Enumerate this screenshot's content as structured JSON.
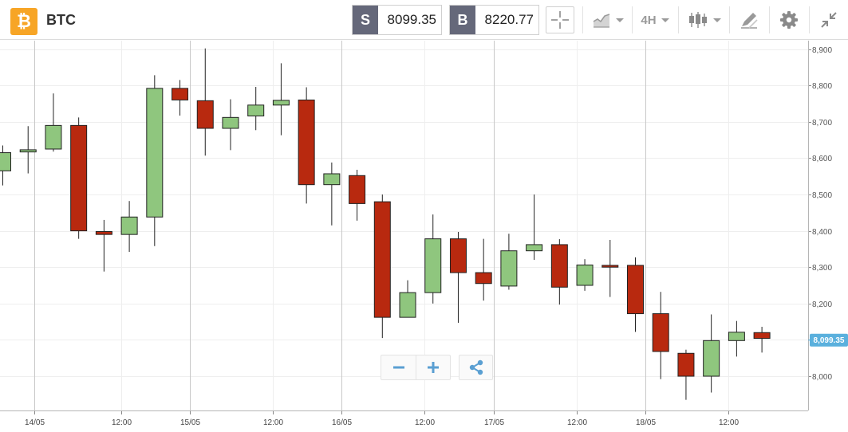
{
  "header": {
    "asset_symbol": "BTC",
    "asset_logo_glyph": "₿",
    "sell_label": "S",
    "sell_price": "8099.35",
    "buy_label": "B",
    "buy_price": "8220.77",
    "interval": "4H"
  },
  "colors": {
    "bullish": "#8fc67e",
    "bearish": "#b8290f",
    "price_flag": "#5ab0dd",
    "icon": "#9a9a9a",
    "zoom_icon": "#5a9fd2",
    "logo": "#f7a526"
  },
  "icons": {
    "asset_logo": "bitcoin-icon",
    "crosshair": "crosshair-icon",
    "chart_type": "area-chart-icon",
    "candles": "candlestick-icon",
    "drawing": "pen-icon",
    "settings": "gear-icon",
    "collapse": "collapse-arrows-icon",
    "zoom_out": "minus-icon",
    "zoom_in": "plus-icon",
    "share": "share-icon"
  },
  "chart_data": {
    "type": "candlestick",
    "title": "",
    "x_tick_labels": [
      "14/05",
      "12:00",
      "15/05",
      "12:00",
      "16/05",
      "12:00",
      "17/05",
      "12:00",
      "18/05",
      "12:00"
    ],
    "y_tick_labels": [
      "8,000",
      "8,100",
      "8,200",
      "8,300",
      "8,400",
      "8,500",
      "8,600",
      "8,700",
      "8,800",
      "8,900"
    ],
    "ylim": [
      7930,
      8920
    ],
    "current_price_label": "8,099.35",
    "current_price": 8099.35,
    "grid": true,
    "candles": [
      {
        "open": 8565,
        "close": 8615,
        "high": 8635,
        "low": 8525
      },
      {
        "open": 8617,
        "close": 8623,
        "high": 8688,
        "low": 8558
      },
      {
        "open": 8625,
        "close": 8690,
        "high": 8778,
        "low": 8618
      },
      {
        "open": 8690,
        "close": 8400,
        "high": 8712,
        "low": 8378
      },
      {
        "open": 8398,
        "close": 8390,
        "high": 8430,
        "low": 8288
      },
      {
        "open": 8390,
        "close": 8438,
        "high": 8482,
        "low": 8342
      },
      {
        "open": 8438,
        "close": 8792,
        "high": 8828,
        "low": 8358
      },
      {
        "open": 8792,
        "close": 8760,
        "high": 8815,
        "low": 8717
      },
      {
        "open": 8758,
        "close": 8682,
        "high": 8902,
        "low": 8607
      },
      {
        "open": 8682,
        "close": 8712,
        "high": 8762,
        "low": 8622
      },
      {
        "open": 8716,
        "close": 8746,
        "high": 8796,
        "low": 8677
      },
      {
        "open": 8746,
        "close": 8759,
        "high": 8861,
        "low": 8663
      },
      {
        "open": 8760,
        "close": 8527,
        "high": 8795,
        "low": 8475
      },
      {
        "open": 8527,
        "close": 8557,
        "high": 8588,
        "low": 8415
      },
      {
        "open": 8552,
        "close": 8475,
        "high": 8568,
        "low": 8428
      },
      {
        "open": 8480,
        "close": 8162,
        "high": 8500,
        "low": 8105
      },
      {
        "open": 8162,
        "close": 8230,
        "high": 8264,
        "low": 8162
      },
      {
        "open": 8230,
        "close": 8378,
        "high": 8445,
        "low": 8200
      },
      {
        "open": 8378,
        "close": 8285,
        "high": 8397,
        "low": 8147
      },
      {
        "open": 8285,
        "close": 8255,
        "high": 8378,
        "low": 8208
      },
      {
        "open": 8248,
        "close": 8345,
        "high": 8392,
        "low": 8238
      },
      {
        "open": 8345,
        "close": 8362,
        "high": 8500,
        "low": 8320
      },
      {
        "open": 8362,
        "close": 8245,
        "high": 8377,
        "low": 8197
      },
      {
        "open": 8250,
        "close": 8306,
        "high": 8322,
        "low": 8235
      },
      {
        "open": 8305,
        "close": 8300,
        "high": 8375,
        "low": 8218
      },
      {
        "open": 8305,
        "close": 8172,
        "high": 8327,
        "low": 8122
      },
      {
        "open": 8172,
        "close": 8068,
        "high": 8232,
        "low": 7992
      },
      {
        "open": 8063,
        "close": 8000,
        "high": 8073,
        "low": 7935
      },
      {
        "open": 8000,
        "close": 8098,
        "high": 8170,
        "low": 7955
      },
      {
        "open": 8098,
        "close": 8121,
        "high": 8152,
        "low": 8054
      },
      {
        "open": 8120,
        "close": 8104,
        "high": 8136,
        "low": 8065
      }
    ]
  }
}
